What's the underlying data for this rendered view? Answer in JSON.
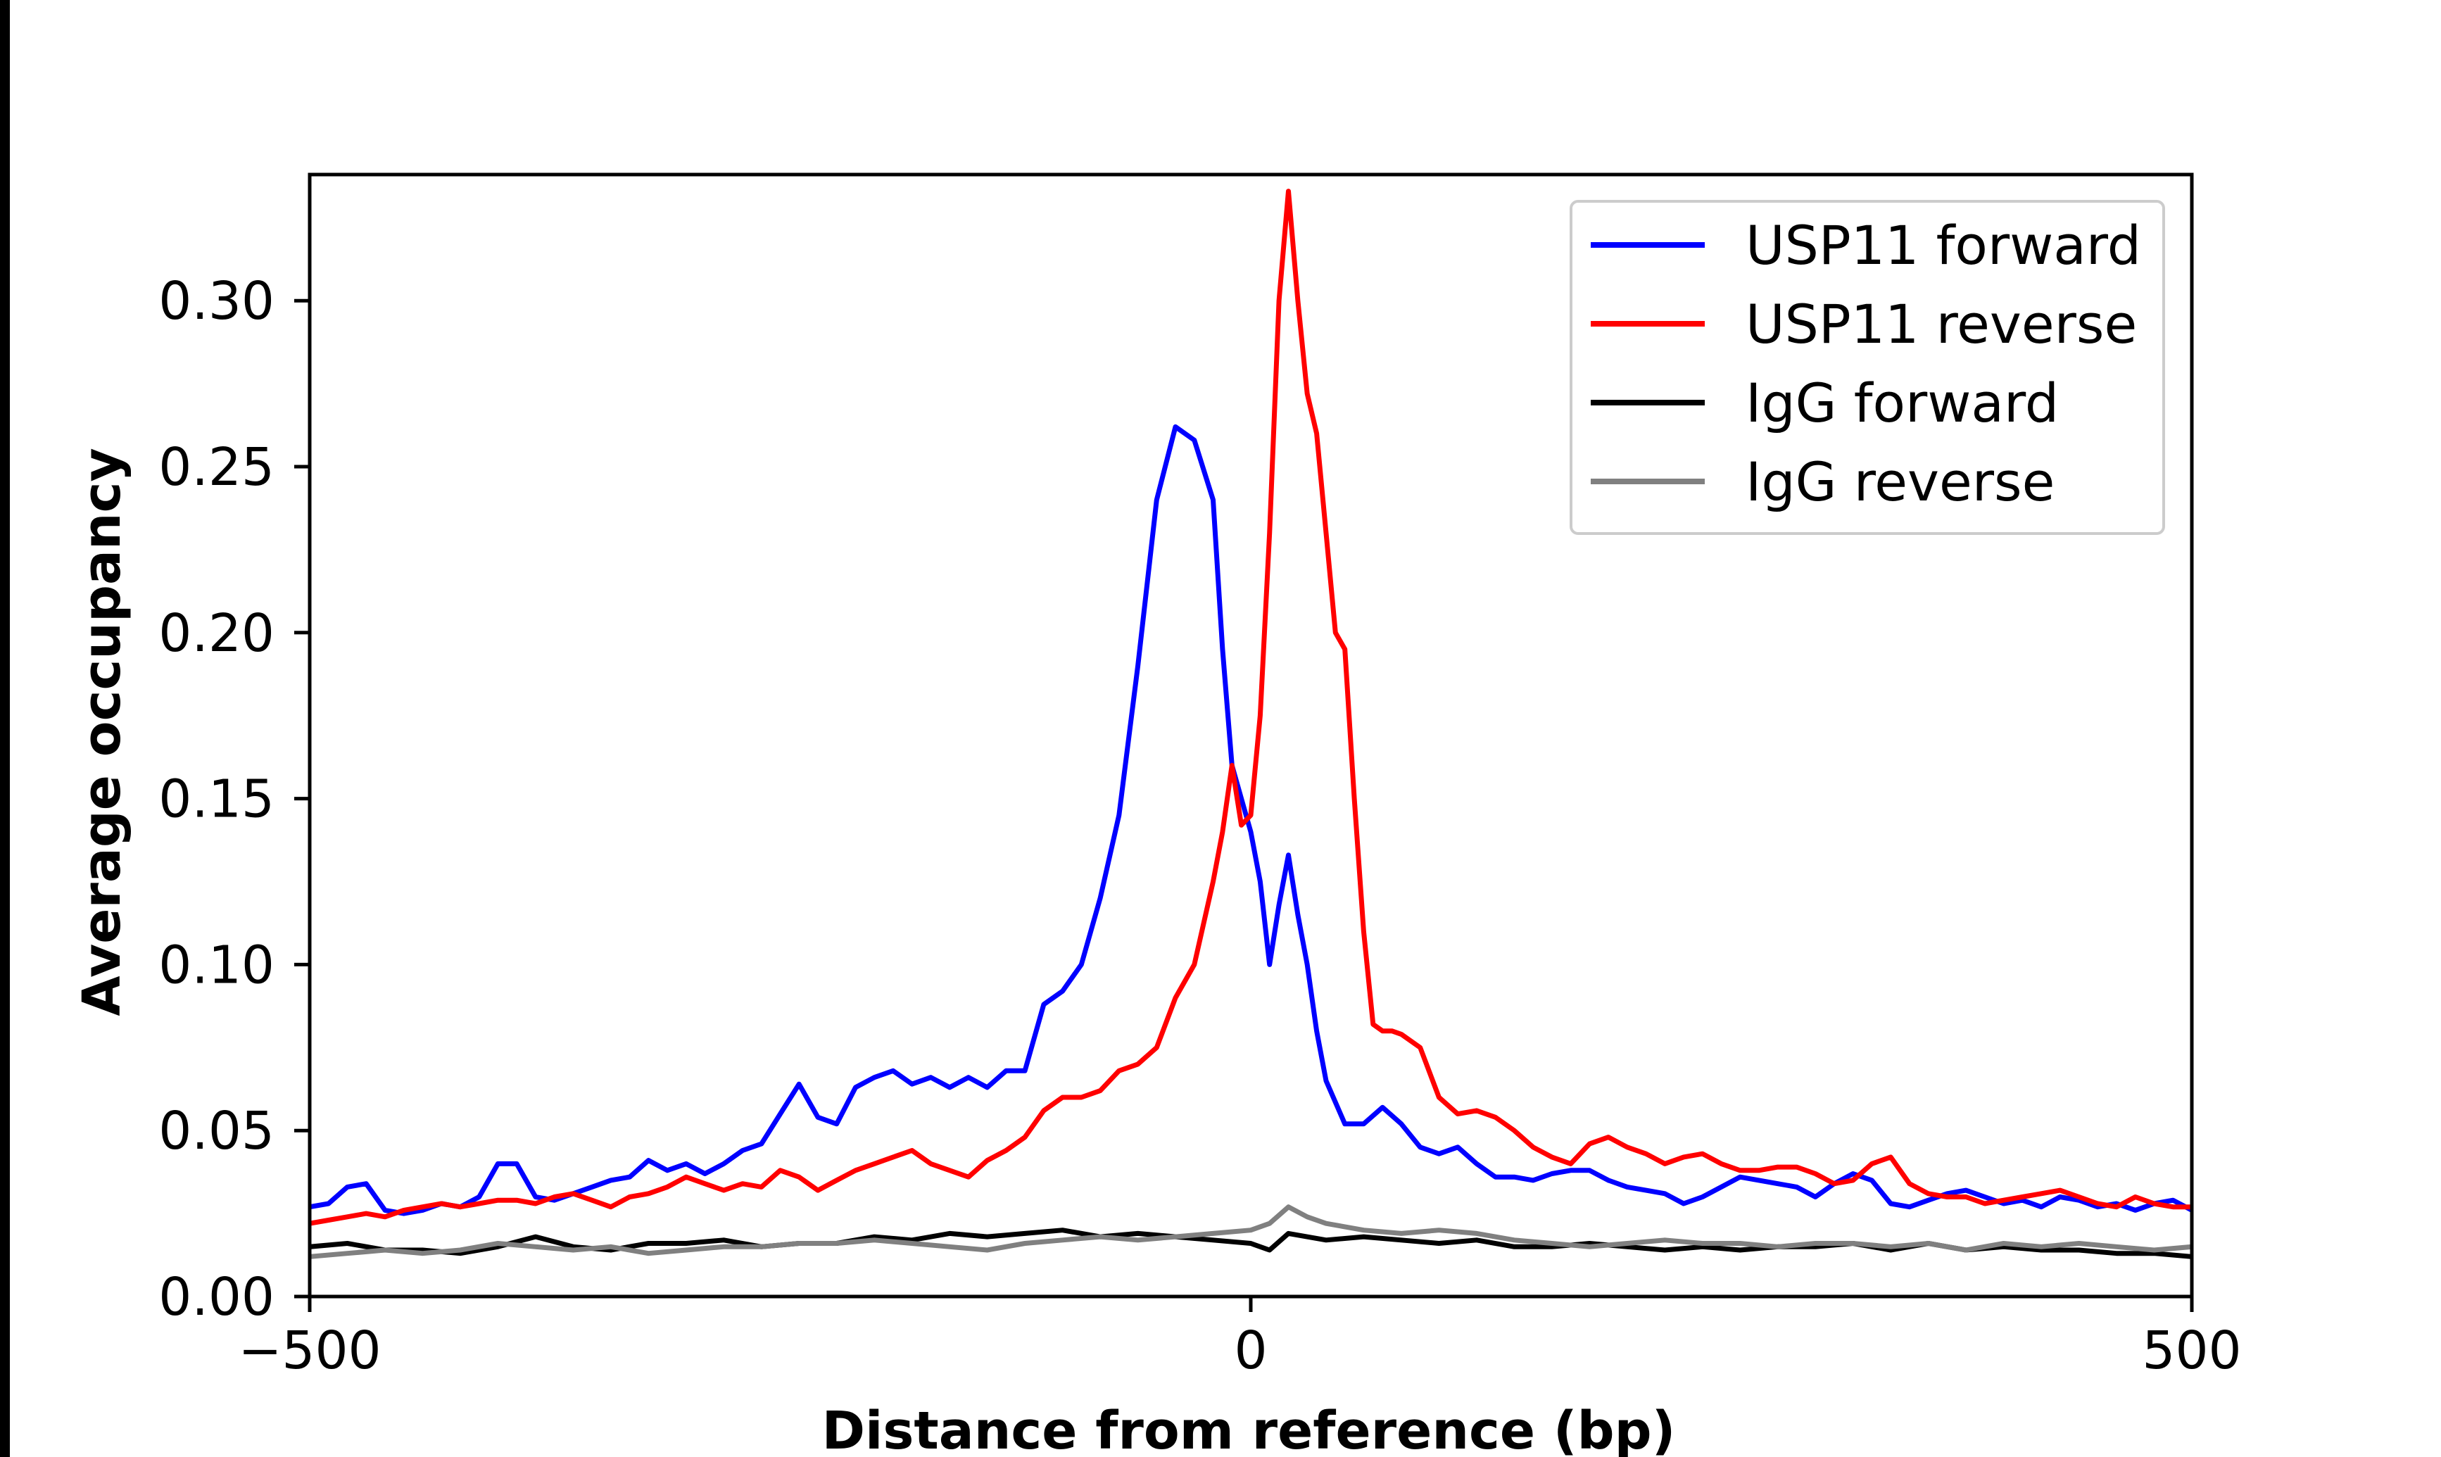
{
  "chart_data": {
    "type": "line",
    "xlabel": "Distance from reference (bp)",
    "ylabel": "Average occupancy",
    "xlim": [
      -500,
      500
    ],
    "ylim": [
      0,
      0.338
    ],
    "xticks": [
      {
        "value": -500,
        "label": "−500"
      },
      {
        "value": 0,
        "label": "0"
      },
      {
        "value": 500,
        "label": "500"
      }
    ],
    "yticks": [
      {
        "value": 0.0,
        "label": "0.00"
      },
      {
        "value": 0.05,
        "label": "0.05"
      },
      {
        "value": 0.1,
        "label": "0.10"
      },
      {
        "value": 0.15,
        "label": "0.15"
      },
      {
        "value": 0.2,
        "label": "0.20"
      },
      {
        "value": 0.25,
        "label": "0.25"
      },
      {
        "value": 0.3,
        "label": "0.30"
      }
    ],
    "grid": false,
    "legend_position": "top-right",
    "series": [
      {
        "name": "USP11 forward",
        "color": "#0000ff",
        "x": [
          -500,
          -490,
          -480,
          -470,
          -460,
          -450,
          -440,
          -430,
          -420,
          -410,
          -400,
          -390,
          -380,
          -370,
          -360,
          -350,
          -340,
          -330,
          -320,
          -310,
          -300,
          -290,
          -280,
          -270,
          -260,
          -250,
          -240,
          -230,
          -220,
          -210,
          -200,
          -190,
          -180,
          -170,
          -160,
          -150,
          -140,
          -130,
          -120,
          -110,
          -100,
          -90,
          -80,
          -70,
          -60,
          -50,
          -40,
          -30,
          -20,
          -15,
          -10,
          -5,
          0,
          5,
          10,
          15,
          20,
          25,
          30,
          35,
          40,
          50,
          60,
          70,
          80,
          90,
          100,
          110,
          120,
          130,
          140,
          150,
          160,
          170,
          180,
          190,
          200,
          210,
          220,
          230,
          240,
          250,
          260,
          270,
          280,
          290,
          300,
          310,
          320,
          330,
          340,
          350,
          360,
          370,
          380,
          390,
          400,
          410,
          420,
          430,
          440,
          450,
          460,
          470,
          480,
          490,
          500
        ],
        "y": [
          0.027,
          0.028,
          0.033,
          0.034,
          0.026,
          0.025,
          0.026,
          0.028,
          0.027,
          0.03,
          0.04,
          0.04,
          0.03,
          0.029,
          0.031,
          0.033,
          0.035,
          0.036,
          0.041,
          0.038,
          0.04,
          0.037,
          0.04,
          0.044,
          0.046,
          0.055,
          0.064,
          0.054,
          0.052,
          0.063,
          0.066,
          0.068,
          0.064,
          0.066,
          0.063,
          0.066,
          0.063,
          0.068,
          0.068,
          0.088,
          0.092,
          0.1,
          0.12,
          0.145,
          0.19,
          0.24,
          0.262,
          0.258,
          0.24,
          0.195,
          0.16,
          0.15,
          0.14,
          0.125,
          0.1,
          0.118,
          0.133,
          0.115,
          0.1,
          0.08,
          0.065,
          0.052,
          0.052,
          0.057,
          0.052,
          0.045,
          0.043,
          0.045,
          0.04,
          0.036,
          0.036,
          0.035,
          0.037,
          0.038,
          0.038,
          0.035,
          0.033,
          0.032,
          0.031,
          0.028,
          0.03,
          0.033,
          0.036,
          0.035,
          0.034,
          0.033,
          0.03,
          0.034,
          0.037,
          0.035,
          0.028,
          0.027,
          0.029,
          0.031,
          0.032,
          0.03,
          0.028,
          0.029,
          0.027,
          0.03,
          0.029,
          0.027,
          0.028,
          0.026,
          0.028,
          0.029,
          0.026
        ]
      },
      {
        "name": "USP11 reverse",
        "color": "#ff0000",
        "x": [
          -500,
          -490,
          -480,
          -470,
          -460,
          -450,
          -440,
          -430,
          -420,
          -410,
          -400,
          -390,
          -380,
          -370,
          -360,
          -350,
          -340,
          -330,
          -320,
          -310,
          -300,
          -290,
          -280,
          -270,
          -260,
          -250,
          -240,
          -230,
          -220,
          -210,
          -200,
          -190,
          -180,
          -170,
          -160,
          -150,
          -140,
          -130,
          -120,
          -110,
          -100,
          -90,
          -80,
          -70,
          -60,
          -50,
          -40,
          -30,
          -20,
          -15,
          -10,
          -5,
          0,
          5,
          10,
          15,
          20,
          25,
          30,
          35,
          40,
          45,
          50,
          55,
          60,
          65,
          70,
          75,
          80,
          90,
          100,
          110,
          120,
          130,
          140,
          150,
          160,
          170,
          180,
          190,
          200,
          210,
          220,
          230,
          240,
          250,
          260,
          270,
          280,
          290,
          300,
          310,
          320,
          330,
          340,
          350,
          360,
          370,
          380,
          390,
          400,
          410,
          420,
          430,
          440,
          450,
          460,
          470,
          480,
          490,
          500
        ],
        "y": [
          0.022,
          0.023,
          0.024,
          0.025,
          0.024,
          0.026,
          0.027,
          0.028,
          0.027,
          0.028,
          0.029,
          0.029,
          0.028,
          0.03,
          0.031,
          0.029,
          0.027,
          0.03,
          0.031,
          0.033,
          0.036,
          0.034,
          0.032,
          0.034,
          0.033,
          0.038,
          0.036,
          0.032,
          0.035,
          0.038,
          0.04,
          0.042,
          0.044,
          0.04,
          0.038,
          0.036,
          0.041,
          0.044,
          0.048,
          0.056,
          0.06,
          0.06,
          0.062,
          0.068,
          0.07,
          0.075,
          0.09,
          0.1,
          0.125,
          0.14,
          0.16,
          0.142,
          0.145,
          0.175,
          0.23,
          0.3,
          0.333,
          0.3,
          0.272,
          0.26,
          0.23,
          0.2,
          0.195,
          0.15,
          0.11,
          0.082,
          0.08,
          0.08,
          0.079,
          0.075,
          0.06,
          0.055,
          0.056,
          0.054,
          0.05,
          0.045,
          0.042,
          0.04,
          0.046,
          0.048,
          0.045,
          0.043,
          0.04,
          0.042,
          0.043,
          0.04,
          0.038,
          0.038,
          0.039,
          0.039,
          0.037,
          0.034,
          0.035,
          0.04,
          0.042,
          0.034,
          0.031,
          0.03,
          0.03,
          0.028,
          0.029,
          0.03,
          0.031,
          0.032,
          0.03,
          0.028,
          0.027,
          0.03,
          0.028,
          0.027,
          0.027
        ]
      },
      {
        "name": "IgG forward",
        "color": "#000000",
        "x": [
          -500,
          -480,
          -460,
          -440,
          -420,
          -400,
          -380,
          -360,
          -340,
          -320,
          -300,
          -280,
          -260,
          -240,
          -220,
          -200,
          -180,
          -160,
          -140,
          -120,
          -100,
          -80,
          -60,
          -40,
          -20,
          0,
          10,
          20,
          40,
          60,
          80,
          100,
          120,
          140,
          160,
          180,
          200,
          220,
          240,
          260,
          280,
          300,
          320,
          340,
          360,
          380,
          400,
          420,
          440,
          460,
          480,
          500
        ],
        "y": [
          0.015,
          0.016,
          0.014,
          0.014,
          0.013,
          0.015,
          0.018,
          0.015,
          0.014,
          0.016,
          0.016,
          0.017,
          0.015,
          0.016,
          0.016,
          0.018,
          0.017,
          0.019,
          0.018,
          0.019,
          0.02,
          0.018,
          0.019,
          0.018,
          0.017,
          0.016,
          0.014,
          0.019,
          0.017,
          0.018,
          0.017,
          0.016,
          0.017,
          0.015,
          0.015,
          0.016,
          0.015,
          0.014,
          0.015,
          0.014,
          0.015,
          0.015,
          0.016,
          0.014,
          0.016,
          0.014,
          0.015,
          0.014,
          0.014,
          0.013,
          0.013,
          0.012
        ]
      },
      {
        "name": "IgG reverse",
        "color": "#808080",
        "x": [
          -500,
          -480,
          -460,
          -440,
          -420,
          -400,
          -380,
          -360,
          -340,
          -320,
          -300,
          -280,
          -260,
          -240,
          -220,
          -200,
          -180,
          -160,
          -140,
          -120,
          -100,
          -80,
          -60,
          -40,
          -20,
          0,
          10,
          20,
          30,
          40,
          60,
          80,
          100,
          120,
          140,
          160,
          180,
          200,
          220,
          240,
          260,
          280,
          300,
          320,
          340,
          360,
          380,
          400,
          420,
          440,
          460,
          480,
          500
        ],
        "y": [
          0.012,
          0.013,
          0.014,
          0.013,
          0.014,
          0.016,
          0.015,
          0.014,
          0.015,
          0.013,
          0.014,
          0.015,
          0.015,
          0.016,
          0.016,
          0.017,
          0.016,
          0.015,
          0.014,
          0.016,
          0.017,
          0.018,
          0.017,
          0.018,
          0.019,
          0.02,
          0.022,
          0.027,
          0.024,
          0.022,
          0.02,
          0.019,
          0.02,
          0.019,
          0.017,
          0.016,
          0.015,
          0.016,
          0.017,
          0.016,
          0.016,
          0.015,
          0.016,
          0.016,
          0.015,
          0.016,
          0.014,
          0.016,
          0.015,
          0.016,
          0.015,
          0.014,
          0.015
        ]
      }
    ]
  }
}
